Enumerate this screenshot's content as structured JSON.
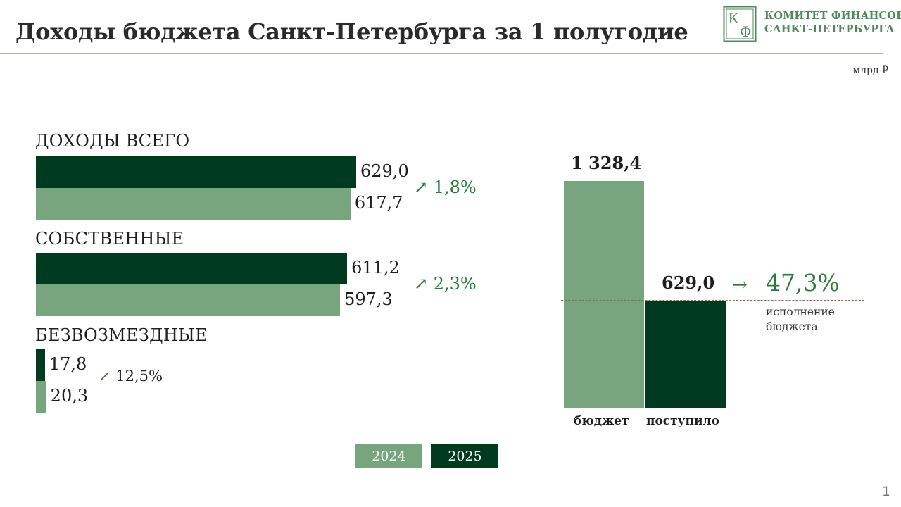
{
  "header": {
    "title": "Доходы бюджета Санкт-Петербурга за 1 полугодие",
    "org_line1": "КОМИТЕТ ФИНАНСОВ",
    "org_line2": "САНКТ-ПЕТЕРБУРГА",
    "logo_letter1": "К",
    "logo_letter2": "Ф"
  },
  "unit": "млрд ₽",
  "page_number": "1",
  "colors": {
    "y2025": "#003a20",
    "y2024": "#76a57e",
    "accent_green": "#2b7a39",
    "dash": "#8b6a4d"
  },
  "icons": {
    "up": "arrow-up-right-icon",
    "down": "arrow-down-left-icon",
    "right": "arrow-right-icon"
  },
  "chart_data": [
    {
      "type": "bar",
      "orientation": "horizontal",
      "categories": [
        "ДОХОДЫ ВСЕГО",
        "СОБСТВЕННЫЕ",
        "БЕЗВОЗМЕЗДНЫЕ"
      ],
      "series": [
        {
          "name": "2025",
          "values": [
            629.0,
            611.2,
            17.8
          ],
          "labels": [
            "629,0",
            "611,2",
            "17,8"
          ]
        },
        {
          "name": "2024",
          "values": [
            617.7,
            597.3,
            20.3
          ],
          "labels": [
            "617,7",
            "597,3",
            "20,3"
          ]
        }
      ],
      "changes": [
        {
          "text": "1,8%",
          "direction": "up",
          "arrow": "↗"
        },
        {
          "text": "2,3%",
          "direction": "up",
          "arrow": "↗"
        },
        {
          "text": "12,5%",
          "direction": "down",
          "arrow": "↙"
        }
      ],
      "legend": [
        "2024",
        "2025"
      ],
      "legend_position": "bottom",
      "grid": false
    },
    {
      "type": "bar",
      "categories": [
        "бюджет",
        "поступило"
      ],
      "values": [
        1328.4,
        629.0
      ],
      "labels": [
        "1 328,4",
        "629,0"
      ],
      "execution_percent": 47.3,
      "execution_text": "47,3%",
      "execution_arrow": "→",
      "execution_label_line1": "исполнение",
      "execution_label_line2": "бюджета",
      "grid": false
    }
  ]
}
